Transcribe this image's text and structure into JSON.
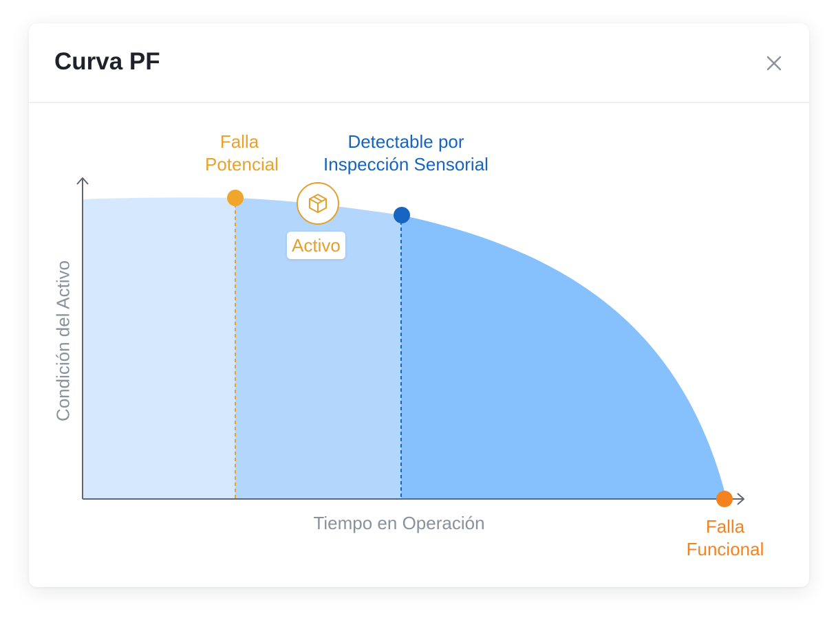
{
  "title": "Curva PF",
  "icons": {
    "close": "close-icon",
    "asset": "cube-icon"
  },
  "colors": {
    "potential": "#e8a22b",
    "detectable": "#1565c0",
    "functional": "#f58220",
    "region_before_potential": "#d6e8fd",
    "region_between": "#b3d6fc",
    "region_after_detectable": "#86c0fd",
    "axis": "#5f6672"
  },
  "diagram": {
    "x_axis_label": "Tiempo en Operación",
    "y_axis_label": "Condición del Activo",
    "potential_failure_label": [
      "Falla",
      "Potencial"
    ],
    "detectable_label": [
      "Detectable por",
      "Inspección Sensorial"
    ],
    "functional_failure_label": [
      "Falla",
      "Funcional"
    ],
    "asset_label": "Activo"
  }
}
